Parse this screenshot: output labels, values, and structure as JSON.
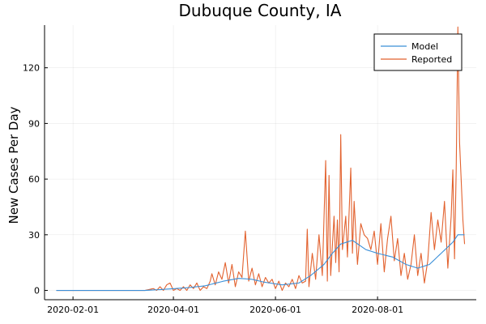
{
  "chart_data": {
    "type": "line",
    "title": "Dubuque County, IA",
    "xlabel": "",
    "ylabel": "New Cases Per Day",
    "x_start": "2020-01-22",
    "x_end": "2020-09-22",
    "xlim": [
      "2020-01-15",
      "2020-09-29"
    ],
    "ylim": [
      -5,
      143
    ],
    "xticks": [
      {
        "date": "2020-02-01",
        "label": "2020-02-01"
      },
      {
        "date": "2020-04-01",
        "label": "2020-04-01"
      },
      {
        "date": "2020-06-01",
        "label": "2020-06-01"
      },
      {
        "date": "2020-08-01",
        "label": "2020-08-01"
      }
    ],
    "yticks": [
      0,
      30,
      60,
      90,
      120
    ],
    "grid": true,
    "legend_position": "top-right",
    "series": [
      {
        "name": "Model",
        "color": "#3a8fd8",
        "keypoints": [
          [
            "2020-01-22",
            0
          ],
          [
            "2020-03-15",
            0
          ],
          [
            "2020-03-25",
            0.5
          ],
          [
            "2020-04-10",
            1.5
          ],
          [
            "2020-04-20",
            2.5
          ],
          [
            "2020-05-01",
            5
          ],
          [
            "2020-05-10",
            6.5
          ],
          [
            "2020-05-18",
            6
          ],
          [
            "2020-05-25",
            4.5
          ],
          [
            "2020-06-05",
            3
          ],
          [
            "2020-06-15",
            4
          ],
          [
            "2020-06-22",
            8
          ],
          [
            "2020-06-30",
            14
          ],
          [
            "2020-07-05",
            20
          ],
          [
            "2020-07-10",
            25
          ],
          [
            "2020-07-17",
            27
          ],
          [
            "2020-07-25",
            22
          ],
          [
            "2020-08-01",
            20
          ],
          [
            "2020-08-10",
            18
          ],
          [
            "2020-08-18",
            14
          ],
          [
            "2020-08-25",
            12
          ],
          [
            "2020-09-01",
            14
          ],
          [
            "2020-09-08",
            20
          ],
          [
            "2020-09-15",
            26
          ],
          [
            "2020-09-18",
            30
          ]
        ]
      },
      {
        "name": "Reported",
        "color": "#e2622f",
        "keypoints": [
          [
            "2020-01-22",
            0
          ],
          [
            "2020-03-15",
            0
          ],
          [
            "2020-03-20",
            1
          ],
          [
            "2020-03-22",
            0
          ],
          [
            "2020-03-24",
            2
          ],
          [
            "2020-03-26",
            0
          ],
          [
            "2020-03-28",
            3
          ],
          [
            "2020-03-30",
            4
          ],
          [
            "2020-04-01",
            0
          ],
          [
            "2020-04-03",
            1
          ],
          [
            "2020-04-05",
            0
          ],
          [
            "2020-04-07",
            2
          ],
          [
            "2020-04-09",
            0
          ],
          [
            "2020-04-11",
            3
          ],
          [
            "2020-04-13",
            1
          ],
          [
            "2020-04-15",
            4
          ],
          [
            "2020-04-17",
            0
          ],
          [
            "2020-04-19",
            2
          ],
          [
            "2020-04-21",
            1
          ],
          [
            "2020-04-23",
            5
          ],
          [
            "2020-04-24",
            9
          ],
          [
            "2020-04-26",
            3
          ],
          [
            "2020-04-28",
            10
          ],
          [
            "2020-04-30",
            6
          ],
          [
            "2020-05-02",
            15
          ],
          [
            "2020-05-04",
            4
          ],
          [
            "2020-05-06",
            14
          ],
          [
            "2020-05-08",
            2
          ],
          [
            "2020-05-10",
            10
          ],
          [
            "2020-05-12",
            7
          ],
          [
            "2020-05-14",
            32
          ],
          [
            "2020-05-16",
            5
          ],
          [
            "2020-05-18",
            12
          ],
          [
            "2020-05-20",
            3
          ],
          [
            "2020-05-22",
            9
          ],
          [
            "2020-05-24",
            2
          ],
          [
            "2020-05-26",
            7
          ],
          [
            "2020-05-28",
            4
          ],
          [
            "2020-05-30",
            6
          ],
          [
            "2020-06-01",
            1
          ],
          [
            "2020-06-03",
            5
          ],
          [
            "2020-06-05",
            0
          ],
          [
            "2020-06-07",
            4
          ],
          [
            "2020-06-09",
            2
          ],
          [
            "2020-06-11",
            6
          ],
          [
            "2020-06-13",
            1
          ],
          [
            "2020-06-15",
            8
          ],
          [
            "2020-06-17",
            4
          ],
          [
            "2020-06-19",
            5
          ],
          [
            "2020-06-20",
            33
          ],
          [
            "2020-06-21",
            2
          ],
          [
            "2020-06-23",
            20
          ],
          [
            "2020-06-25",
            6
          ],
          [
            "2020-06-27",
            30
          ],
          [
            "2020-06-29",
            8
          ],
          [
            "2020-07-01",
            70
          ],
          [
            "2020-07-02",
            5
          ],
          [
            "2020-07-03",
            62
          ],
          [
            "2020-07-04",
            8
          ],
          [
            "2020-07-06",
            40
          ],
          [
            "2020-07-07",
            15
          ],
          [
            "2020-07-08",
            38
          ],
          [
            "2020-07-09",
            10
          ],
          [
            "2020-07-10",
            84
          ],
          [
            "2020-07-11",
            22
          ],
          [
            "2020-07-13",
            40
          ],
          [
            "2020-07-14",
            18
          ],
          [
            "2020-07-16",
            66
          ],
          [
            "2020-07-17",
            20
          ],
          [
            "2020-07-18",
            48
          ],
          [
            "2020-07-20",
            14
          ],
          [
            "2020-07-22",
            36
          ],
          [
            "2020-07-24",
            30
          ],
          [
            "2020-07-26",
            28
          ],
          [
            "2020-07-28",
            22
          ],
          [
            "2020-07-30",
            32
          ],
          [
            "2020-08-01",
            14
          ],
          [
            "2020-08-03",
            36
          ],
          [
            "2020-08-05",
            10
          ],
          [
            "2020-08-07",
            28
          ],
          [
            "2020-08-09",
            40
          ],
          [
            "2020-08-11",
            16
          ],
          [
            "2020-08-13",
            28
          ],
          [
            "2020-08-15",
            8
          ],
          [
            "2020-08-17",
            20
          ],
          [
            "2020-08-19",
            6
          ],
          [
            "2020-08-21",
            14
          ],
          [
            "2020-08-23",
            30
          ],
          [
            "2020-08-25",
            8
          ],
          [
            "2020-08-27",
            20
          ],
          [
            "2020-08-29",
            4
          ],
          [
            "2020-08-31",
            16
          ],
          [
            "2020-09-02",
            42
          ],
          [
            "2020-09-04",
            22
          ],
          [
            "2020-09-06",
            38
          ],
          [
            "2020-09-08",
            26
          ],
          [
            "2020-09-10",
            48
          ],
          [
            "2020-09-12",
            12
          ],
          [
            "2020-09-14",
            40
          ],
          [
            "2020-09-15",
            65
          ],
          [
            "2020-09-16",
            17
          ],
          [
            "2020-09-17",
            65
          ],
          [
            "2020-09-18",
            142
          ],
          [
            "2020-09-19",
            80
          ],
          [
            "2020-09-21",
            38
          ],
          [
            "2020-09-22",
            25
          ]
        ]
      }
    ]
  }
}
